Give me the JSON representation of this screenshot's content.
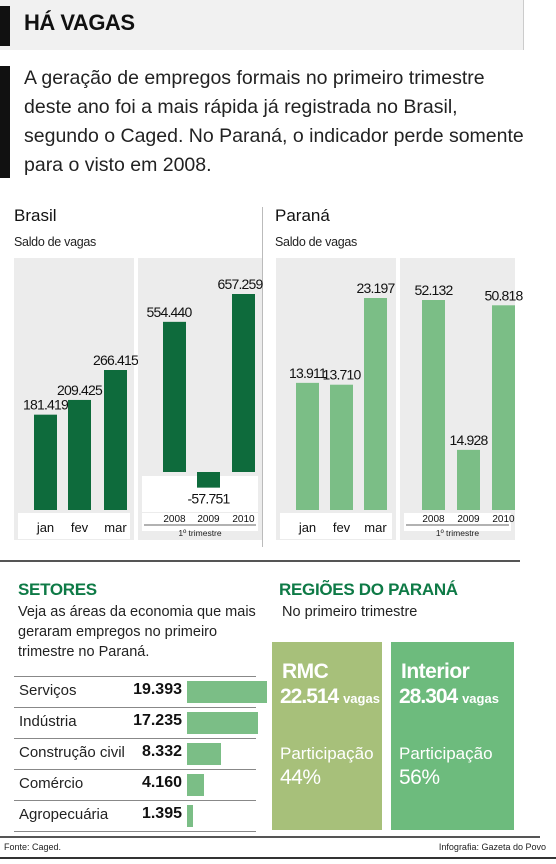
{
  "header": {
    "title": "HÁ VAGAS"
  },
  "intro": "A geração de empregos formais no primeiro trimestre deste ano foi a mais rápida já registrada no Brasil, segundo o Caged. No Paraná, o indicador perde somente para o visto em 2008.",
  "brasil": {
    "title": "Brasil",
    "subtitle": "Saldo de vagas"
  },
  "parana": {
    "title": "Paraná",
    "subtitle": "Saldo de vagas"
  },
  "chart_data": [
    {
      "type": "bar",
      "title": "Brasil",
      "subtitle": "Saldo de vagas",
      "color": "#0e6b3c",
      "categories": [
        "jan",
        "fev",
        "mar"
      ],
      "values": [
        181419,
        209425,
        266415
      ],
      "labels": [
        "181.419",
        "209.425",
        "266.415"
      ]
    },
    {
      "type": "bar",
      "title": "Brasil",
      "subtitle": "Saldo de vagas",
      "xlabel": "1º trimestre",
      "color": "#0e6b3c",
      "categories": [
        "2008",
        "2009",
        "2010"
      ],
      "values": [
        554440,
        -57751,
        657259
      ],
      "labels": [
        "554.440",
        "-57.751",
        "657.259"
      ]
    },
    {
      "type": "bar",
      "title": "Paraná",
      "subtitle": "Saldo de vagas",
      "color": "#7bbe86",
      "categories": [
        "jan",
        "fev",
        "mar"
      ],
      "values": [
        13911,
        13710,
        23197
      ],
      "labels": [
        "13.911",
        "13.710",
        "23.197"
      ]
    },
    {
      "type": "bar",
      "title": "Paraná",
      "subtitle": "Saldo de vagas",
      "xlabel": "1º trimestre",
      "color": "#7bbe86",
      "categories": [
        "2008",
        "2009",
        "2010"
      ],
      "values": [
        52132,
        14928,
        50818
      ],
      "labels": [
        "52.132",
        "14.928",
        "50.818"
      ]
    },
    {
      "type": "bar",
      "title": "SETORES",
      "categories": [
        "Serviços",
        "Indústria",
        "Construção civil",
        "Comércio",
        "Agropecuária"
      ],
      "values": [
        19393,
        17235,
        8332,
        4160,
        1395
      ],
      "labels": [
        "19.393",
        "17.235",
        "8.332",
        "4.160",
        "1.395"
      ],
      "color": "#7bbe86"
    }
  ],
  "setores": {
    "title": "SETORES",
    "description": "Veja as áreas da economia que mais geraram empregos no primeiro trimestre no Paraná."
  },
  "regioes": {
    "title": "REGIÕES DO PARANÁ",
    "subtitle": "No primeiro trimestre",
    "rmc": {
      "name": "RMC",
      "value": "22.514",
      "unit": "vagas",
      "part_label": "Participação",
      "part_value": "44%",
      "color": "#a7c07a"
    },
    "interior": {
      "name": "Interior",
      "value": "28.304",
      "unit": "vagas",
      "part_label": "Participação",
      "part_value": "56%",
      "color": "#6dbb7d"
    }
  },
  "footer": {
    "source": "Fonte: Caged.",
    "credit": "Infografia: Gazeta do Povo"
  },
  "colors": {
    "brasil": "#0e6b3c",
    "parana": "#7bbe86",
    "accent": "#0e7a46"
  }
}
